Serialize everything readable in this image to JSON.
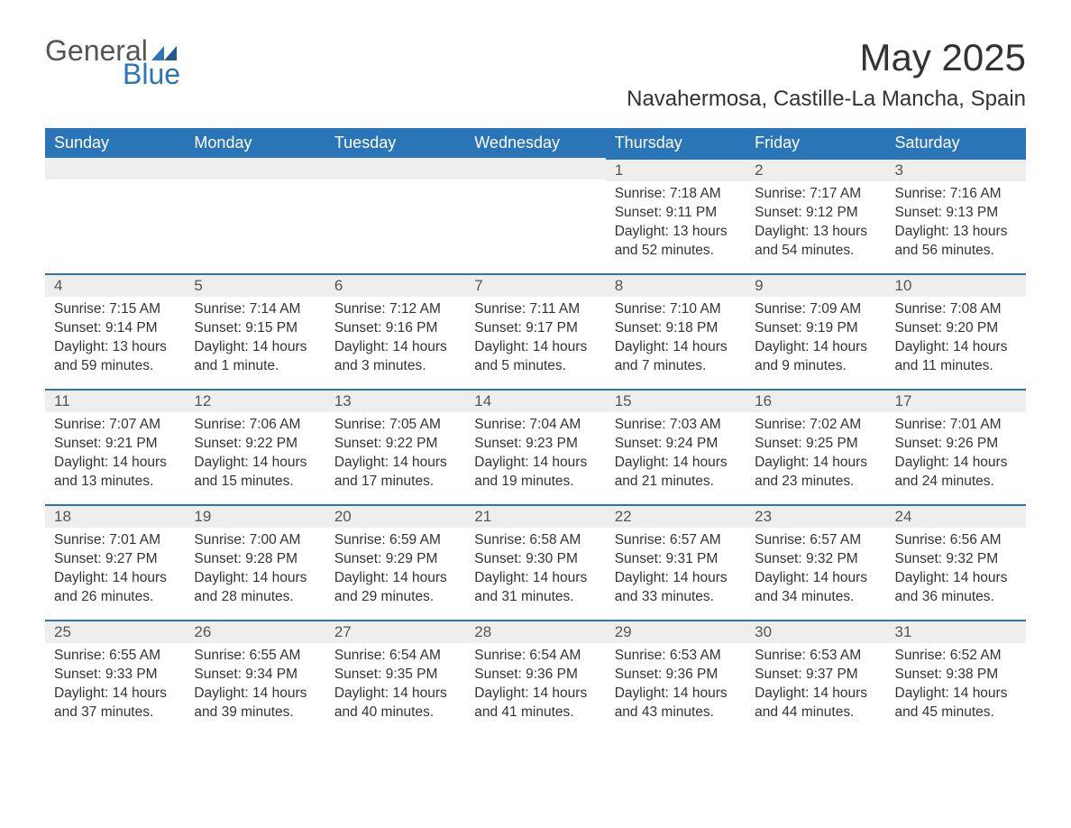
{
  "logo": {
    "word1": "General",
    "word2": "Blue"
  },
  "title": "May 2025",
  "location": "Navahermosa, Castille-La Mancha, Spain",
  "colors": {
    "header_bg": "#2a74b8",
    "header_text": "#ffffff",
    "daynum_bg": "#eeeeee",
    "border_top": "#2a74b8",
    "body_text": "#333333",
    "logo_gray": "#555555",
    "logo_blue": "#2a74b8",
    "page_bg": "#ffffff"
  },
  "weekdays": [
    "Sunday",
    "Monday",
    "Tuesday",
    "Wednesday",
    "Thursday",
    "Friday",
    "Saturday"
  ],
  "weeks": [
    [
      null,
      null,
      null,
      null,
      {
        "n": "1",
        "sunrise": "7:18 AM",
        "sunset": "9:11 PM",
        "daylight": "13 hours and 52 minutes."
      },
      {
        "n": "2",
        "sunrise": "7:17 AM",
        "sunset": "9:12 PM",
        "daylight": "13 hours and 54 minutes."
      },
      {
        "n": "3",
        "sunrise": "7:16 AM",
        "sunset": "9:13 PM",
        "daylight": "13 hours and 56 minutes."
      }
    ],
    [
      {
        "n": "4",
        "sunrise": "7:15 AM",
        "sunset": "9:14 PM",
        "daylight": "13 hours and 59 minutes."
      },
      {
        "n": "5",
        "sunrise": "7:14 AM",
        "sunset": "9:15 PM",
        "daylight": "14 hours and 1 minute."
      },
      {
        "n": "6",
        "sunrise": "7:12 AM",
        "sunset": "9:16 PM",
        "daylight": "14 hours and 3 minutes."
      },
      {
        "n": "7",
        "sunrise": "7:11 AM",
        "sunset": "9:17 PM",
        "daylight": "14 hours and 5 minutes."
      },
      {
        "n": "8",
        "sunrise": "7:10 AM",
        "sunset": "9:18 PM",
        "daylight": "14 hours and 7 minutes."
      },
      {
        "n": "9",
        "sunrise": "7:09 AM",
        "sunset": "9:19 PM",
        "daylight": "14 hours and 9 minutes."
      },
      {
        "n": "10",
        "sunrise": "7:08 AM",
        "sunset": "9:20 PM",
        "daylight": "14 hours and 11 minutes."
      }
    ],
    [
      {
        "n": "11",
        "sunrise": "7:07 AM",
        "sunset": "9:21 PM",
        "daylight": "14 hours and 13 minutes."
      },
      {
        "n": "12",
        "sunrise": "7:06 AM",
        "sunset": "9:22 PM",
        "daylight": "14 hours and 15 minutes."
      },
      {
        "n": "13",
        "sunrise": "7:05 AM",
        "sunset": "9:22 PM",
        "daylight": "14 hours and 17 minutes."
      },
      {
        "n": "14",
        "sunrise": "7:04 AM",
        "sunset": "9:23 PM",
        "daylight": "14 hours and 19 minutes."
      },
      {
        "n": "15",
        "sunrise": "7:03 AM",
        "sunset": "9:24 PM",
        "daylight": "14 hours and 21 minutes."
      },
      {
        "n": "16",
        "sunrise": "7:02 AM",
        "sunset": "9:25 PM",
        "daylight": "14 hours and 23 minutes."
      },
      {
        "n": "17",
        "sunrise": "7:01 AM",
        "sunset": "9:26 PM",
        "daylight": "14 hours and 24 minutes."
      }
    ],
    [
      {
        "n": "18",
        "sunrise": "7:01 AM",
        "sunset": "9:27 PM",
        "daylight": "14 hours and 26 minutes."
      },
      {
        "n": "19",
        "sunrise": "7:00 AM",
        "sunset": "9:28 PM",
        "daylight": "14 hours and 28 minutes."
      },
      {
        "n": "20",
        "sunrise": "6:59 AM",
        "sunset": "9:29 PM",
        "daylight": "14 hours and 29 minutes."
      },
      {
        "n": "21",
        "sunrise": "6:58 AM",
        "sunset": "9:30 PM",
        "daylight": "14 hours and 31 minutes."
      },
      {
        "n": "22",
        "sunrise": "6:57 AM",
        "sunset": "9:31 PM",
        "daylight": "14 hours and 33 minutes."
      },
      {
        "n": "23",
        "sunrise": "6:57 AM",
        "sunset": "9:32 PM",
        "daylight": "14 hours and 34 minutes."
      },
      {
        "n": "24",
        "sunrise": "6:56 AM",
        "sunset": "9:32 PM",
        "daylight": "14 hours and 36 minutes."
      }
    ],
    [
      {
        "n": "25",
        "sunrise": "6:55 AM",
        "sunset": "9:33 PM",
        "daylight": "14 hours and 37 minutes."
      },
      {
        "n": "26",
        "sunrise": "6:55 AM",
        "sunset": "9:34 PM",
        "daylight": "14 hours and 39 minutes."
      },
      {
        "n": "27",
        "sunrise": "6:54 AM",
        "sunset": "9:35 PM",
        "daylight": "14 hours and 40 minutes."
      },
      {
        "n": "28",
        "sunrise": "6:54 AM",
        "sunset": "9:36 PM",
        "daylight": "14 hours and 41 minutes."
      },
      {
        "n": "29",
        "sunrise": "6:53 AM",
        "sunset": "9:36 PM",
        "daylight": "14 hours and 43 minutes."
      },
      {
        "n": "30",
        "sunrise": "6:53 AM",
        "sunset": "9:37 PM",
        "daylight": "14 hours and 44 minutes."
      },
      {
        "n": "31",
        "sunrise": "6:52 AM",
        "sunset": "9:38 PM",
        "daylight": "14 hours and 45 minutes."
      }
    ]
  ],
  "labels": {
    "sunrise_prefix": "Sunrise: ",
    "sunset_prefix": "Sunset: ",
    "daylight_prefix": "Daylight: "
  }
}
